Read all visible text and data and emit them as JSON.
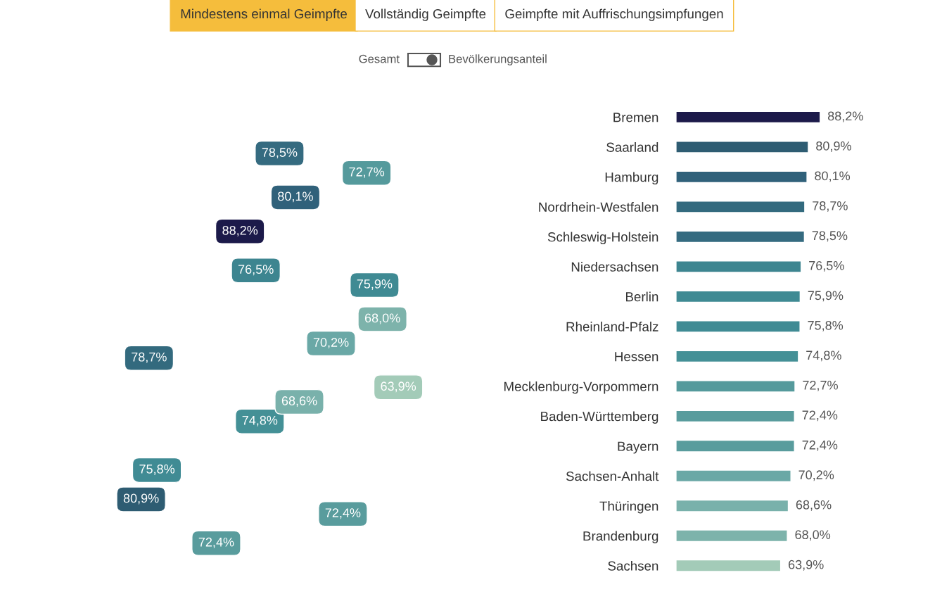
{
  "chart_data": [
    {
      "type": "other",
      "annotations": [
        "Mindestens einmal Geimpfte",
        "Vollständig Geimpfte",
        "Geimpfte mit Auffrischungsimpfungen",
        "Gesamt",
        "Bevölkerungsanteil"
      ],
      "colors": [
        "#f5bd3c",
        "#ffffff",
        "#ffffff"
      ]
    },
    {
      "type": "other",
      "annotations": [
        "78,5%",
        "80,1%",
        "88,2%",
        "76,5%",
        "72,7%",
        "75,9%",
        "68,0%",
        "70,2%",
        "78,7%",
        "74,8%",
        "68,6%",
        "63,9%",
        "75,8%",
        "80,9%",
        "72,4%",
        "72,4%"
      ],
      "colors": [
        "#356b80",
        "#30617a",
        "#1c1a4a",
        "#3d8590",
        "#559a9c",
        "#3f8a93",
        "#7db3ab",
        "#6aa8a6",
        "#336a7e",
        "#449096",
        "#79b1ab",
        "#a3cbb8",
        "#408b94",
        "#2e5c72",
        "#599c9d",
        "#599c9d"
      ]
    },
    {
      "type": "bar",
      "orientation": "horizontal",
      "tick_labels": "y",
      "categories": [
        "Bremen",
        "Saarland",
        "Hamburg",
        "Nordrhein-Westfalen",
        "Schleswig-Holstein",
        "Niedersachsen",
        "Berlin",
        "Rheinland-Pfalz",
        "Hessen",
        "Mecklenburg-Vorpommern",
        "Baden-Württemberg",
        "Bayern",
        "Sachsen-Anhalt",
        "Thüringen",
        "Brandenburg",
        "Sachsen"
      ],
      "values": [
        88.2,
        80.9,
        80.1,
        78.7,
        78.5,
        76.5,
        75.9,
        75.8,
        74.8,
        72.7,
        72.4,
        72.4,
        70.2,
        68.6,
        68.0,
        63.9
      ],
      "value_labels": [
        "88,2%",
        "80,9%",
        "80,1%",
        "78,7%",
        "78,5%",
        "76,5%",
        "75,9%",
        "75,8%",
        "74,8%",
        "72,7%",
        "72,4%",
        "72,4%",
        "70,2%",
        "68,6%",
        "68,0%",
        "63,9%"
      ],
      "colors": [
        "#1c1a4a",
        "#2e5c72",
        "#30617a",
        "#336a7e",
        "#356b80",
        "#3d8590",
        "#3f8a93",
        "#408b94",
        "#449096",
        "#559a9c",
        "#599c9d",
        "#599c9d",
        "#6aa8a6",
        "#79b1ab",
        "#7db3ab",
        "#a3cbb8"
      ]
    }
  ]
}
